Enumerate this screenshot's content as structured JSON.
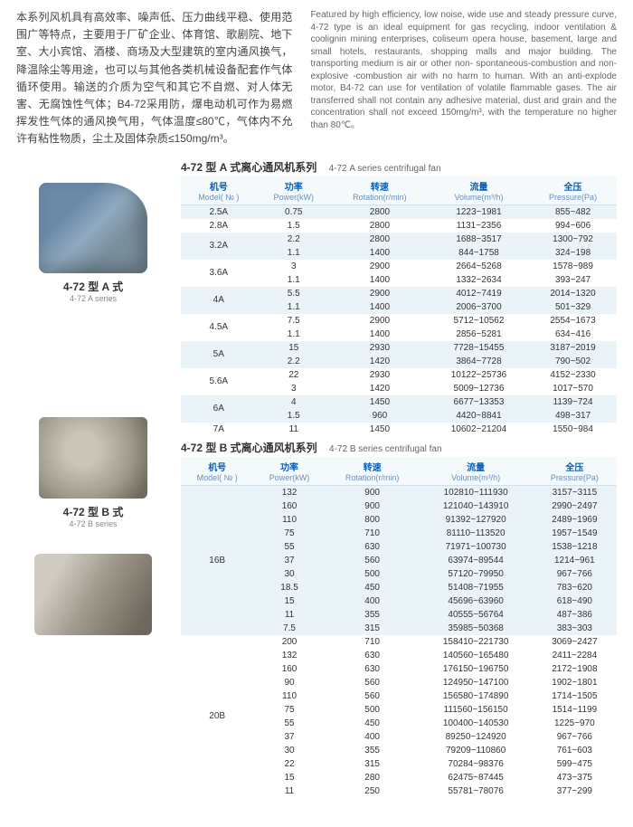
{
  "intro": {
    "cn": "本系列风机具有高效率、噪声低、压力曲线平稳、使用范围广等特点，主要用于厂矿企业、体育馆、歌剧院、地下室、大小宾馆、酒楼、商场及大型建筑的室内通风换气，降温除尘等用途，也可以与其他各类机械设备配套作气体循环使用。输送的介质为空气和其它不自燃、对人体无害、无腐蚀性气体；B4-72采用防，爆电动机可作为易燃挥发性气体的通风换气用，气体温度≤80℃，气体内不允许有粘性物质，尘土及固体杂质≤150mg/m³。",
    "en": "Featured by high efficiency, low noise, wide use and steady pressure curve, 4-72 type is an ideal equipment for gas recycling, indoor ventilation & coolignin mining enterprises, coliseum opera house, basement, large and small hotels, restaurants, shopping malls and major building. The transporting medium is air or other non- spontaneous-combustion and non- explosive -combustion air with no harm to human. With an anti-explode motor, B4-72 can use for ventilation of volatile flammable gases. The air transferred shall not contain any adhesive material, dust and grain and the concentration shall not exceed 150mg/m³, with the temperature no higher than 80℃。"
  },
  "fans": [
    {
      "cap_cn": "4-72 型 A 式",
      "cap_en": "4-72 A series"
    },
    {
      "cap_cn": "4-72 型 B 式",
      "cap_en": "4-72 B series"
    },
    {
      "cap_cn": "",
      "cap_en": ""
    }
  ],
  "tableA": {
    "title_cn": "4-72 型 A 式离心通风机系列",
    "title_en": "4-72 A series centrifugal fan",
    "headers": [
      {
        "cn": "机号",
        "en": "Model( № )"
      },
      {
        "cn": "功率",
        "en": "Power(kW)"
      },
      {
        "cn": "转速",
        "en": "Rotation(r/min)"
      },
      {
        "cn": "流量",
        "en": "Volume(m³/h)"
      },
      {
        "cn": "全压",
        "en": "Pressure(Pa)"
      }
    ],
    "rows": [
      {
        "model": "2.5A",
        "span": 1,
        "data": [
          [
            "0.75",
            "2800",
            "1223~1981",
            "855~482"
          ]
        ]
      },
      {
        "model": "2.8A",
        "span": 1,
        "data": [
          [
            "1.5",
            "2800",
            "1131~2356",
            "994~606"
          ]
        ]
      },
      {
        "model": "3.2A",
        "span": 2,
        "data": [
          [
            "2.2",
            "2800",
            "1688~3517",
            "1300~792"
          ],
          [
            "1.1",
            "1400",
            "844~1758",
            "324~198"
          ]
        ]
      },
      {
        "model": "3.6A",
        "span": 2,
        "data": [
          [
            "3",
            "2900",
            "2664~5268",
            "1578~989"
          ],
          [
            "1.1",
            "1400",
            "1332~2634",
            "393~247"
          ]
        ]
      },
      {
        "model": "4A",
        "span": 2,
        "data": [
          [
            "5.5",
            "2900",
            "4012~7419",
            "2014~1320"
          ],
          [
            "1.1",
            "1400",
            "2006~3700",
            "501~329"
          ]
        ]
      },
      {
        "model": "4.5A",
        "span": 2,
        "data": [
          [
            "7.5",
            "2900",
            "5712~10562",
            "2554~1673"
          ],
          [
            "1.1",
            "1400",
            "2856~5281",
            "634~416"
          ]
        ]
      },
      {
        "model": "5A",
        "span": 2,
        "data": [
          [
            "15",
            "2930",
            "7728~15455",
            "3187~2019"
          ],
          [
            "2.2",
            "1420",
            "3864~7728",
            "790~502"
          ]
        ]
      },
      {
        "model": "5.6A",
        "span": 2,
        "data": [
          [
            "22",
            "2930",
            "10122~25736",
            "4152~2330"
          ],
          [
            "3",
            "1420",
            "5009~12736",
            "1017~570"
          ]
        ]
      },
      {
        "model": "6A",
        "span": 2,
        "data": [
          [
            "4",
            "1450",
            "6677~13353",
            "1139~724"
          ],
          [
            "1.5",
            "960",
            "4420~8841",
            "498~317"
          ]
        ]
      },
      {
        "model": "7A",
        "span": 1,
        "data": [
          [
            "11",
            "1450",
            "10602~21204",
            "1550~984"
          ]
        ]
      }
    ]
  },
  "tableB": {
    "title_cn": "4-72 型 B 式离心通风机系列",
    "title_en": "4-72 B series centrifugal fan",
    "headers": [
      {
        "cn": "机号",
        "en": "Model( № )"
      },
      {
        "cn": "功率",
        "en": "Power(kW)"
      },
      {
        "cn": "转速",
        "en": "Rotation(r/min)"
      },
      {
        "cn": "流量",
        "en": "Volume(m³/h)"
      },
      {
        "cn": "全压",
        "en": "Pressure(Pa)"
      }
    ],
    "rows": [
      {
        "model": "16B",
        "span": 11,
        "data": [
          [
            "132",
            "900",
            "102810~111930",
            "3157~3115"
          ],
          [
            "160",
            "900",
            "121040~143910",
            "2990~2497"
          ],
          [
            "110",
            "800",
            "91392~127920",
            "2489~1969"
          ],
          [
            "75",
            "710",
            "81110~113520",
            "1957~1549"
          ],
          [
            "55",
            "630",
            "71971~100730",
            "1538~1218"
          ],
          [
            "37",
            "560",
            "63974~89544",
            "1214~961"
          ],
          [
            "30",
            "500",
            "57120~79950",
            "967~766"
          ],
          [
            "18.5",
            "450",
            "51408~71955",
            "783~620"
          ],
          [
            "15",
            "400",
            "45696~63960",
            "618~490"
          ],
          [
            "11",
            "355",
            "40555~56764",
            "487~386"
          ],
          [
            "7.5",
            "315",
            "35985~50368",
            "383~303"
          ]
        ]
      },
      {
        "model": "20B",
        "span": 12,
        "data": [
          [
            "200",
            "710",
            "158410~221730",
            "3069~2427"
          ],
          [
            "132",
            "630",
            "140560~165480",
            "2411~2284"
          ],
          [
            "160",
            "630",
            "176150~196750",
            "2172~1908"
          ],
          [
            "90",
            "560",
            "124950~147100",
            "1902~1801"
          ],
          [
            "110",
            "560",
            "156580~174890",
            "1714~1505"
          ],
          [
            "75",
            "500",
            "111560~156150",
            "1514~1199"
          ],
          [
            "55",
            "450",
            "100400~140530",
            "1225~970"
          ],
          [
            "37",
            "400",
            "89250~124920",
            "967~766"
          ],
          [
            "30",
            "355",
            "79209~110860",
            "761~603"
          ],
          [
            "22",
            "315",
            "70284~98376",
            "599~475"
          ],
          [
            "15",
            "280",
            "62475~87445",
            "473~375"
          ],
          [
            "11",
            "250",
            "55781~78076",
            "377~299"
          ]
        ]
      }
    ]
  },
  "colors": {
    "header_text": "#0a5eb5",
    "header_bg": "#f4f9fb",
    "row_odd": "#eaf4f8",
    "row_even": "#ffffff"
  }
}
